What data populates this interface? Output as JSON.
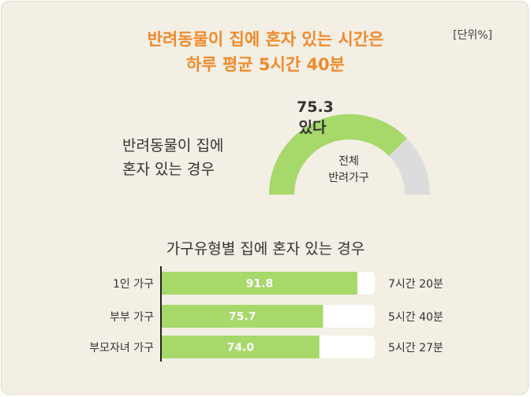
{
  "title": {
    "line1": "반려동물이 집에 혼자 있는 시간은",
    "line2": "하루 평균 5시간 40분"
  },
  "unit": "[단위%]",
  "gauge": {
    "label_line1": "반려동물이 집에",
    "label_line2": "혼자 있는 경우",
    "value": 75.3,
    "value_text": "75.3",
    "value_sub": "있다",
    "center_line1": "전체",
    "center_line2": "반려가구"
  },
  "section_title": "가구유형별 집에 혼자 있는 경우",
  "colors": {
    "accent": "#f08a2c",
    "bar": "#a6d86a",
    "gauge_bg": "#dcdcdc",
    "track": "#ffffff"
  },
  "chart_data": [
    {
      "type": "pie",
      "labels": [
        "있다",
        ""
      ],
      "values": [
        75.3,
        24.7
      ]
    },
    {
      "type": "bar",
      "title": "가구유형별 집에 혼자 있는 경우",
      "categories": [
        "1인 가구",
        "부부 가구",
        "부모자녀 가구"
      ],
      "values": [
        91.8,
        75.7,
        74.0
      ],
      "value_labels": [
        "91.8",
        "75.7",
        "74.0"
      ],
      "annotations": [
        "7시간 20분",
        "5시간 40분",
        "5시간 27분"
      ],
      "ylim": [
        0,
        100
      ]
    }
  ]
}
